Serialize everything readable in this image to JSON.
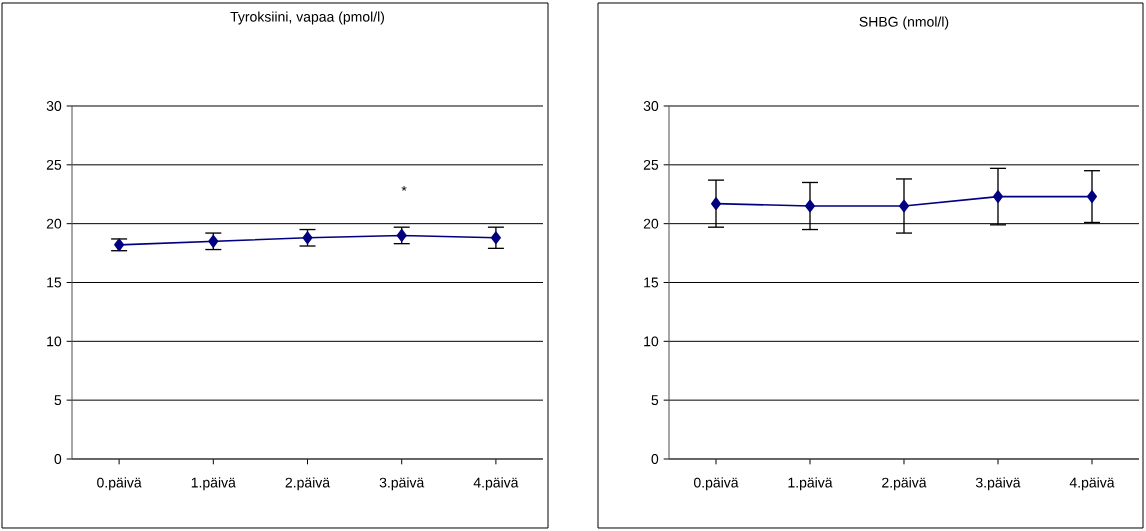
{
  "chart_data": [
    {
      "type": "line",
      "title": "Tyroksiini, vapaa (pmol/l)",
      "categories": [
        "0.päivä",
        "1.päivä",
        "2.päivä",
        "3.päivä",
        "4.päivä"
      ],
      "series": [
        {
          "color": "#000080",
          "values": [
            18.2,
            18.5,
            18.8,
            19.0,
            18.8
          ],
          "errors": [
            0.5,
            0.7,
            0.7,
            0.7,
            0.9
          ]
        }
      ],
      "ylim": [
        0,
        30
      ],
      "yticks": [
        0,
        5,
        10,
        15,
        20,
        25,
        30
      ],
      "grid": "y",
      "marker": "diamond",
      "line_style": "solid",
      "legend": false,
      "annotations": [
        "*"
      ]
    },
    {
      "type": "line",
      "title": "SHBG (nmol/l)",
      "categories": [
        "0.päivä",
        "1.päivä",
        "2.päivä",
        "3.päivä",
        "4.päivä"
      ],
      "series": [
        {
          "color": "#000080",
          "values": [
            21.7,
            21.5,
            21.5,
            22.3,
            22.3
          ],
          "errors": [
            2.0,
            2.0,
            2.3,
            2.4,
            2.2
          ]
        }
      ],
      "ylim": [
        0,
        30
      ],
      "yticks": [
        0,
        5,
        10,
        15,
        20,
        25,
        30
      ],
      "grid": "y",
      "marker": "diamond",
      "line_style": "solid",
      "legend": false
    }
  ]
}
